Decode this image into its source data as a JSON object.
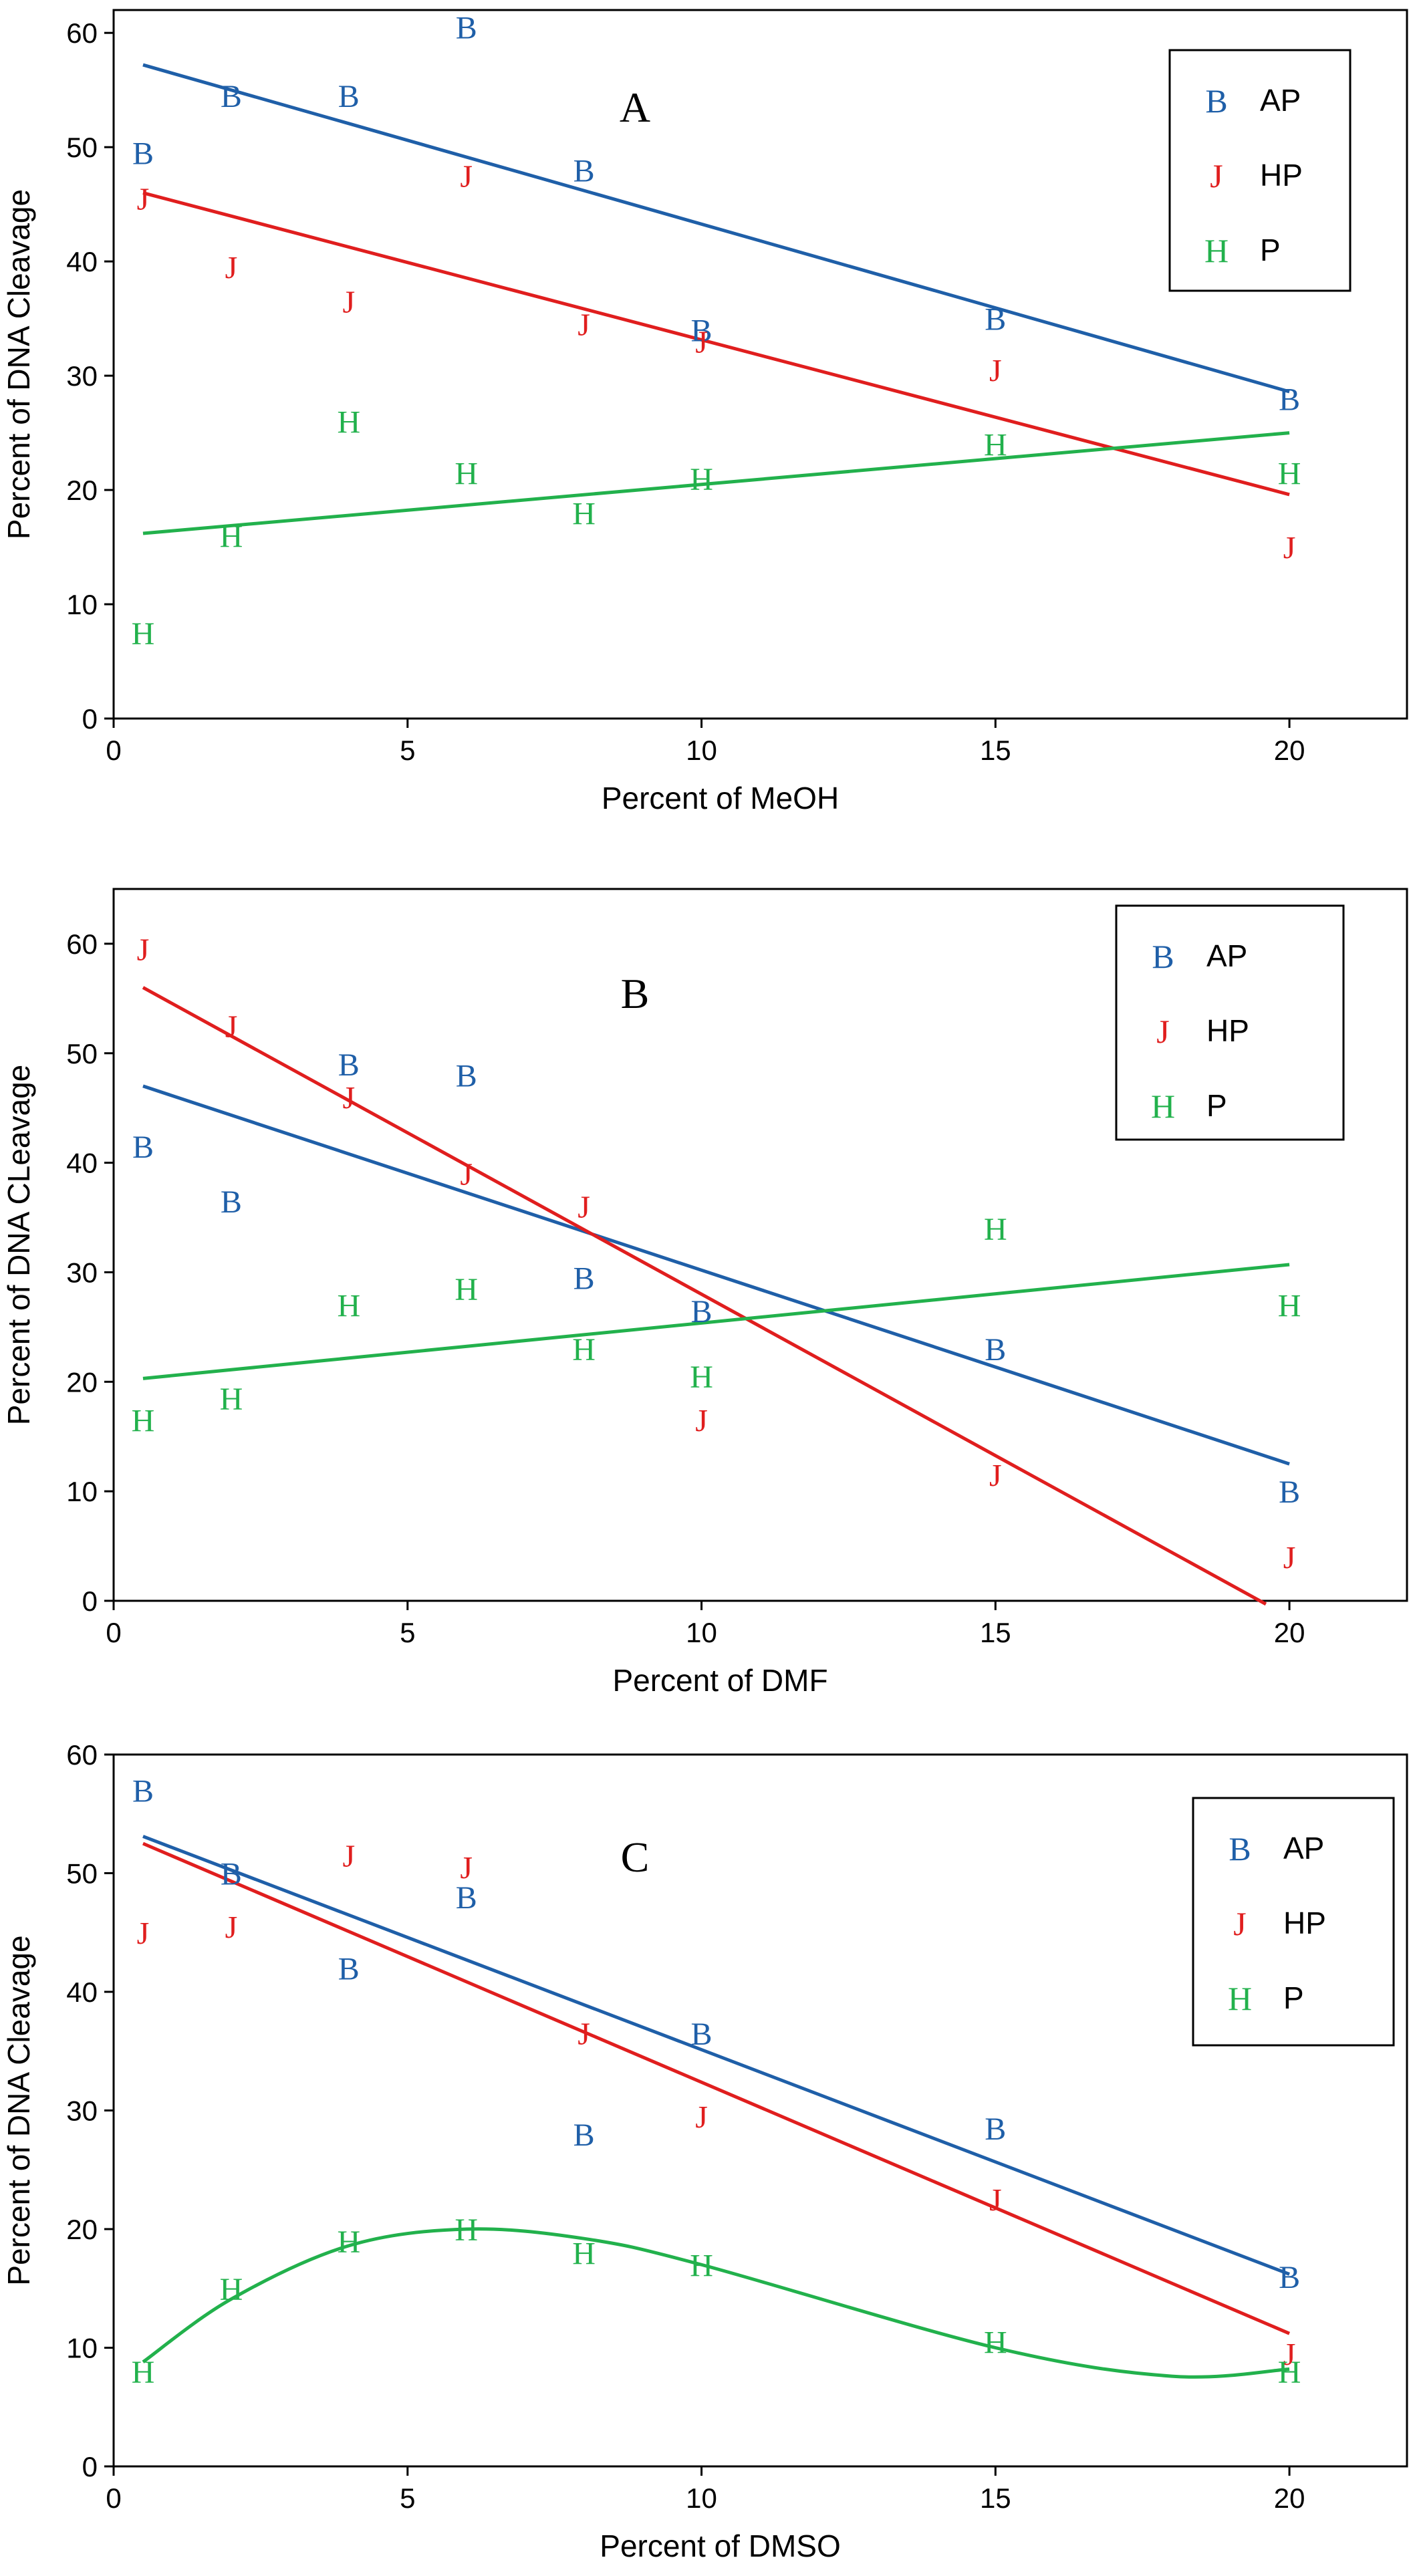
{
  "chart_data": [
    {
      "type": "scatter",
      "panel_label": "A",
      "xlabel": "Percent of MeOH",
      "ylabel": "Percent of DNA Cleavage",
      "xlim": [
        0,
        22
      ],
      "ylim": [
        0,
        62
      ],
      "xticks": [
        0,
        5,
        10,
        15,
        20
      ],
      "yticks": [
        0,
        10,
        20,
        30,
        40,
        50,
        60
      ],
      "legend_position": "top-right",
      "series": [
        {
          "name": "AP",
          "marker": "B",
          "color": "#1f5fa8",
          "x": [
            0.5,
            2,
            4,
            6,
            8,
            10,
            15,
            20
          ],
          "y": [
            49.5,
            54.5,
            54.5,
            60.5,
            48,
            34,
            35,
            28
          ],
          "fit": {
            "kind": "linear",
            "x0": 0.5,
            "y0": 57.2,
            "x1": 20,
            "y1": 28.6
          }
        },
        {
          "name": "HP",
          "marker": "J",
          "color": "#e01e1e",
          "x": [
            0.5,
            2,
            4,
            6,
            8,
            10,
            15,
            20
          ],
          "y": [
            45.5,
            39.5,
            36.5,
            47.5,
            34.5,
            33,
            30.5,
            15
          ],
          "fit": {
            "kind": "linear",
            "x0": 0.5,
            "y0": 46,
            "x1": 20,
            "y1": 19.6
          }
        },
        {
          "name": "P",
          "marker": "H",
          "color": "#22b14c",
          "x": [
            0.5,
            2,
            4,
            6,
            8,
            10,
            15,
            20
          ],
          "y": [
            7.5,
            16,
            26,
            21.5,
            18,
            21,
            24,
            21.5
          ],
          "fit": {
            "kind": "linear",
            "x0": 0.5,
            "y0": 16.2,
            "x1": 20,
            "y1": 25
          }
        }
      ]
    },
    {
      "type": "scatter",
      "panel_label": "B",
      "xlabel": "Percent of DMF",
      "ylabel": "Percent of DNA CLeavage",
      "xlim": [
        0,
        22
      ],
      "ylim": [
        0,
        65
      ],
      "xticks": [
        0,
        5,
        10,
        15,
        20
      ],
      "yticks": [
        0,
        10,
        20,
        30,
        40,
        50,
        60
      ],
      "legend_position": "top-right",
      "series": [
        {
          "name": "AP",
          "marker": "B",
          "color": "#1f5fa8",
          "x": [
            0.5,
            2,
            4,
            6,
            8,
            10,
            15,
            20
          ],
          "y": [
            41.5,
            36.5,
            49,
            48,
            29.5,
            26.5,
            23,
            10
          ],
          "fit": {
            "kind": "linear",
            "x0": 0.5,
            "y0": 47,
            "x1": 20,
            "y1": 12.5
          }
        },
        {
          "name": "HP",
          "marker": "J",
          "color": "#e01e1e",
          "x": [
            0.5,
            2,
            4,
            6,
            8,
            10,
            15,
            20
          ],
          "y": [
            59.5,
            52.5,
            46,
            39,
            36,
            16.5,
            11.5,
            4
          ],
          "fit": {
            "kind": "linear",
            "x0": 0.5,
            "y0": 56,
            "x1": 19.6,
            "y1": -0.3
          }
        },
        {
          "name": "P",
          "marker": "H",
          "color": "#22b14c",
          "x": [
            0.5,
            2,
            4,
            6,
            8,
            10,
            15,
            20
          ],
          "y": [
            16.5,
            18.5,
            27,
            28.5,
            23,
            20.5,
            34,
            27
          ],
          "fit": {
            "kind": "linear",
            "x0": 0.5,
            "y0": 20.3,
            "x1": 20,
            "y1": 30.7
          }
        }
      ]
    },
    {
      "type": "scatter",
      "panel_label": "C",
      "xlabel": "Percent of DMSO",
      "ylabel": "Percent of DNA Cleavage",
      "xlim": [
        0,
        22
      ],
      "ylim": [
        0,
        60
      ],
      "xticks": [
        0,
        5,
        10,
        15,
        20
      ],
      "yticks": [
        0,
        10,
        20,
        30,
        40,
        50,
        60
      ],
      "legend_position": "top-right",
      "series": [
        {
          "name": "AP",
          "marker": "B",
          "color": "#1f5fa8",
          "x": [
            0.5,
            2,
            4,
            6,
            8,
            10,
            15,
            20
          ],
          "y": [
            57,
            50,
            42,
            48,
            28,
            36.5,
            28.5,
            16
          ],
          "fit": {
            "kind": "linear",
            "x0": 0.5,
            "y0": 53.1,
            "x1": 20,
            "y1": 16.2
          }
        },
        {
          "name": "HP",
          "marker": "J",
          "color": "#e01e1e",
          "x": [
            0.5,
            2,
            4,
            6,
            8,
            10,
            15,
            20
          ],
          "y": [
            45,
            45.5,
            51.5,
            50.5,
            36.5,
            29.5,
            22.5,
            9.5
          ],
          "fit": {
            "kind": "linear",
            "x0": 0.5,
            "y0": 52.5,
            "x1": 20,
            "y1": 11.2
          }
        },
        {
          "name": "P",
          "marker": "H",
          "color": "#22b14c",
          "x": [
            0.5,
            2,
            4,
            6,
            8,
            10,
            15,
            20
          ],
          "y": [
            8,
            15,
            19,
            20,
            18,
            17,
            10.5,
            8
          ],
          "fit": {
            "kind": "cubic",
            "x0": 0.5,
            "x1": 20,
            "points_x": [
              0.5,
              2,
              4,
              6,
              8,
              10,
              15,
              18,
              20
            ],
            "points_y": [
              8.8,
              14.1,
              18.6,
              20,
              19.2,
              17,
              10,
              7.6,
              8.2
            ]
          }
        }
      ]
    }
  ]
}
